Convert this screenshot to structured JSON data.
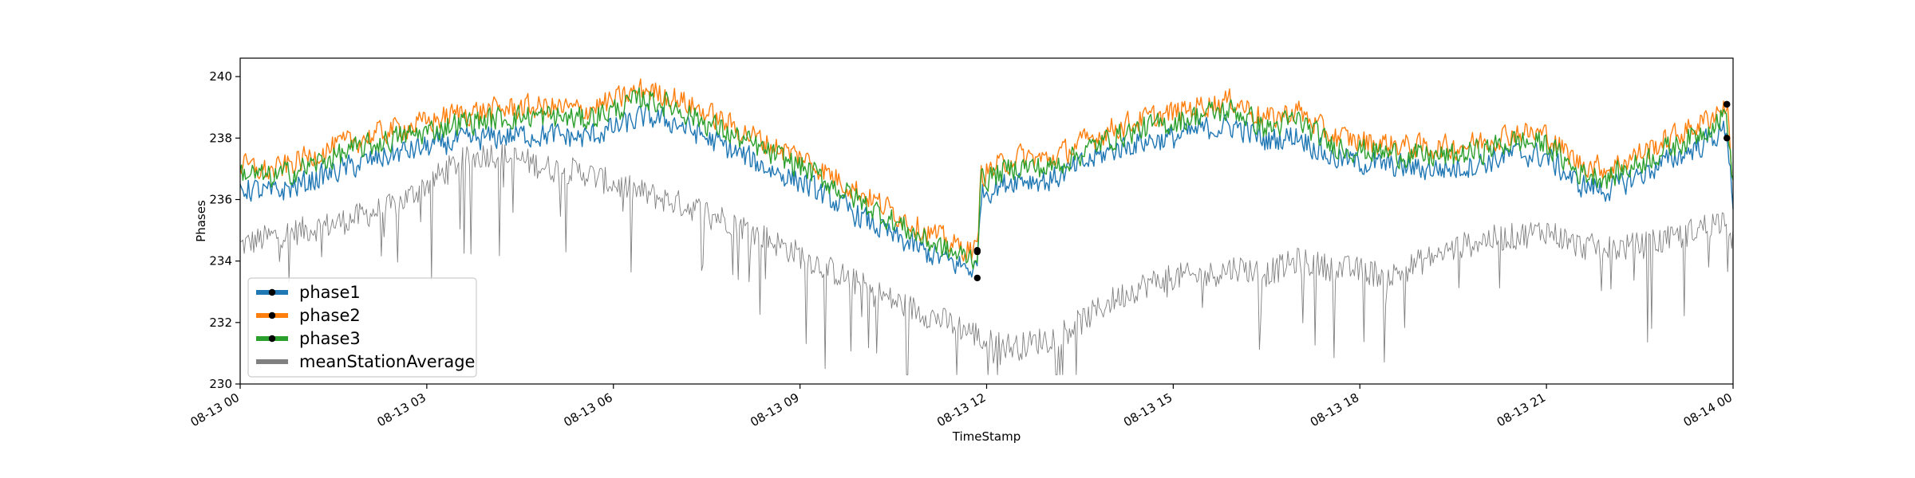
{
  "chart_data": {
    "type": "line",
    "title": "",
    "xlabel": "TimeStamp",
    "ylabel": "Phases",
    "xlim": [
      "2023-08-13 00:00",
      "2023-08-14 00:00"
    ],
    "ylim": [
      230,
      240.6
    ],
    "x_ticks": [
      "08-13 00",
      "08-13 03",
      "08-13 06",
      "08-13 09",
      "08-13 12",
      "08-13 15",
      "08-13 18",
      "08-13 21",
      "08-14 00"
    ],
    "y_ticks": [
      230,
      232,
      234,
      236,
      238,
      240
    ],
    "x_hours": [
      0,
      0.5,
      1,
      1.5,
      2,
      2.5,
      3,
      3.5,
      4,
      4.5,
      5,
      5.5,
      6,
      6.5,
      7,
      7.5,
      8,
      8.5,
      9,
      9.5,
      10,
      10.5,
      11,
      11.5,
      11.85,
      11.9,
      12.5,
      13,
      13.5,
      14,
      14.5,
      15,
      15.5,
      16,
      16.5,
      17,
      17.5,
      18,
      18.5,
      19,
      19.5,
      20,
      20.5,
      21,
      21.5,
      22,
      22.5,
      23,
      23.5,
      23.9,
      24
    ],
    "legend_position": "lower-left",
    "grid": false,
    "series": [
      {
        "name": "phase1",
        "color": "#1f77b4",
        "values": [
          236.4,
          236.2,
          236.5,
          236.9,
          237.2,
          237.5,
          237.7,
          237.9,
          238.0,
          238.1,
          238.1,
          238.0,
          238.3,
          238.7,
          238.5,
          238.0,
          237.5,
          237.0,
          236.6,
          236.0,
          235.4,
          234.8,
          234.3,
          233.9,
          233.7,
          236.2,
          236.7,
          236.6,
          237.1,
          237.6,
          237.9,
          238.0,
          238.3,
          238.4,
          237.9,
          238.1,
          237.4,
          237.2,
          237.1,
          237.0,
          237.0,
          237.2,
          237.5,
          237.4,
          236.5,
          236.3,
          236.8,
          237.3,
          237.8,
          238.3,
          235.9
        ]
      },
      {
        "name": "phase2",
        "color": "#ff7f0e",
        "values": [
          237.1,
          236.9,
          237.3,
          237.7,
          238.0,
          238.3,
          238.5,
          238.8,
          238.9,
          239.0,
          239.0,
          238.9,
          239.2,
          239.6,
          239.3,
          238.8,
          238.3,
          237.8,
          237.4,
          236.8,
          236.2,
          235.6,
          235.0,
          234.5,
          234.3,
          236.8,
          237.4,
          237.3,
          237.8,
          238.3,
          238.6,
          238.8,
          239.1,
          239.2,
          238.6,
          238.9,
          238.1,
          237.9,
          237.8,
          237.7,
          237.7,
          237.9,
          238.2,
          238.1,
          237.2,
          237.0,
          237.5,
          238.0,
          238.5,
          239.1,
          236.6
        ]
      },
      {
        "name": "phase3",
        "color": "#2ca02c",
        "values": [
          236.9,
          236.7,
          237.0,
          237.4,
          237.7,
          238.0,
          238.2,
          238.5,
          238.6,
          238.7,
          238.7,
          238.6,
          238.9,
          239.3,
          239.0,
          238.5,
          238.0,
          237.5,
          237.1,
          236.5,
          235.9,
          235.3,
          234.7,
          234.2,
          234.1,
          236.6,
          237.1,
          237.0,
          237.5,
          238.0,
          238.3,
          238.5,
          238.8,
          238.9,
          238.3,
          238.6,
          237.8,
          237.6,
          237.5,
          237.4,
          237.4,
          237.6,
          237.9,
          237.8,
          236.9,
          236.7,
          237.2,
          237.7,
          238.2,
          238.8,
          236.3
        ]
      },
      {
        "name": "meanStationAverage",
        "color": "#808080",
        "values": [
          234.5,
          234.8,
          235.0,
          235.2,
          235.5,
          235.8,
          236.5,
          237.2,
          237.5,
          237.3,
          237.0,
          236.9,
          236.5,
          236.2,
          235.9,
          235.6,
          235.2,
          234.7,
          234.2,
          233.7,
          233.2,
          232.7,
          232.3,
          231.9,
          231.6,
          231.4,
          231.2,
          231.5,
          232.0,
          232.7,
          233.2,
          233.5,
          233.5,
          233.8,
          233.6,
          234.0,
          233.8,
          233.7,
          233.5,
          234.0,
          234.4,
          234.7,
          234.8,
          235.0,
          234.5,
          234.4,
          234.5,
          234.7,
          235.1,
          235.4,
          234.6
        ]
      }
    ]
  }
}
